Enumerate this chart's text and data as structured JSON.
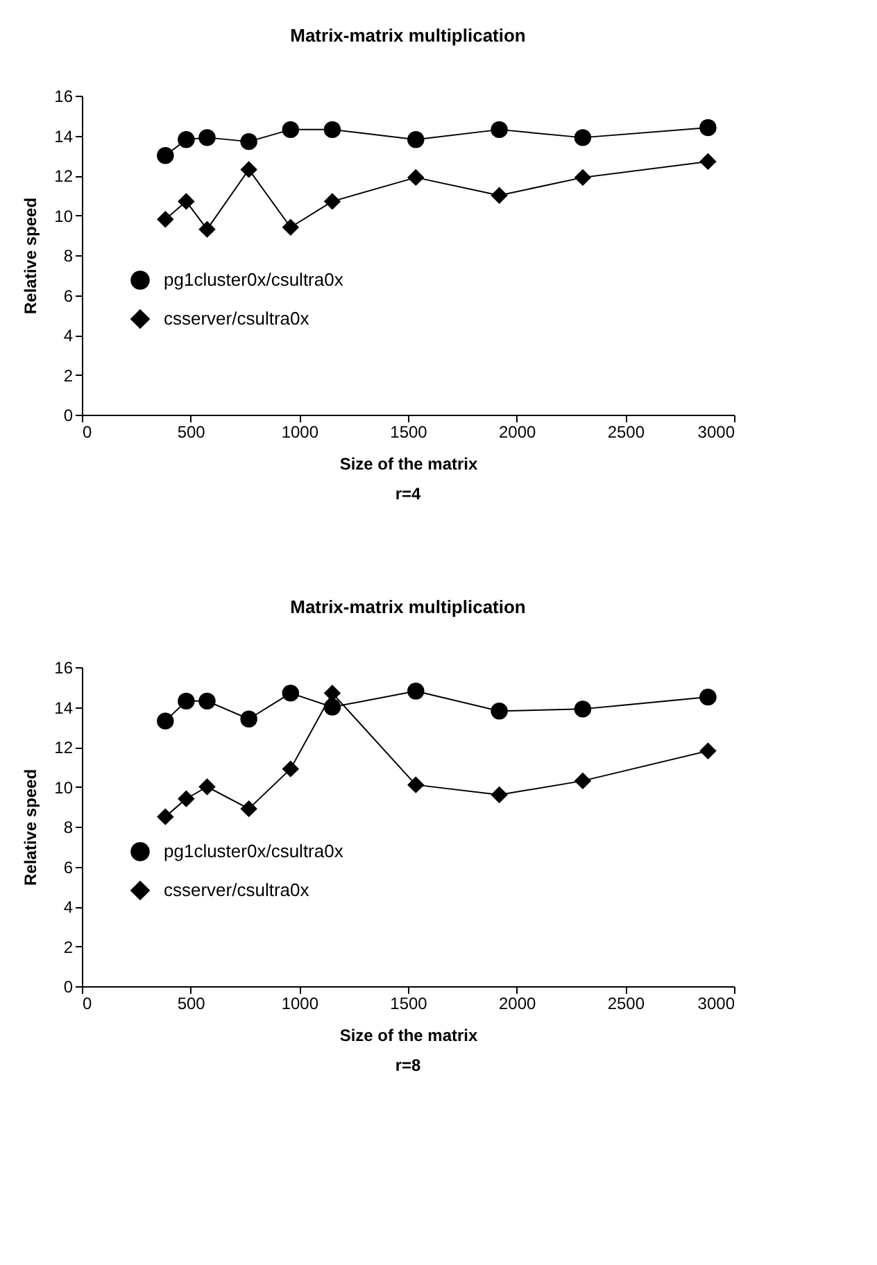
{
  "chart_data": [
    {
      "type": "line",
      "title": "Matrix-matrix multiplication",
      "xlabel": "Size of the matrix",
      "ylabel": "Relative speed",
      "annotations": [
        "r=4"
      ],
      "x": [
        384,
        480,
        576,
        768,
        960,
        1152,
        1536,
        1920,
        2304,
        2880
      ],
      "xlim": [
        0,
        3000
      ],
      "xticks": [
        0,
        500,
        1000,
        1500,
        2000,
        2500,
        3000
      ],
      "ylim": [
        0,
        16
      ],
      "yticks": [
        0,
        2,
        4,
        6,
        8,
        10,
        12,
        14,
        16
      ],
      "grid": false,
      "legend": "left",
      "series": [
        {
          "name": "pg1cluster0x/csultra0x",
          "color": "#000000",
          "marker": "circle",
          "values": [
            13.0,
            13.8,
            13.9,
            13.7,
            14.3,
            14.3,
            13.8,
            14.3,
            13.9,
            14.4
          ]
        },
        {
          "name": "csserver/csultra0x",
          "color": "#000000",
          "marker": "diamond",
          "values": [
            9.8,
            10.7,
            9.3,
            12.3,
            9.4,
            10.7,
            11.9,
            11.0,
            11.9,
            12.7
          ]
        }
      ]
    },
    {
      "type": "line",
      "title": "Matrix-matrix multiplication",
      "xlabel": "Size of the matrix",
      "ylabel": "Relative speed",
      "annotations": [
        "r=8"
      ],
      "x": [
        384,
        480,
        576,
        768,
        960,
        1152,
        1536,
        1920,
        2304,
        2880
      ],
      "xlim": [
        0,
        3000
      ],
      "xticks": [
        0,
        500,
        1000,
        1500,
        2000,
        2500,
        3000
      ],
      "ylim": [
        0,
        16
      ],
      "yticks": [
        0,
        2,
        4,
        6,
        8,
        10,
        12,
        14,
        16
      ],
      "grid": false,
      "legend": "left",
      "series": [
        {
          "name": "pg1cluster0x/csultra0x",
          "color": "#000000",
          "marker": "circle",
          "values": [
            13.3,
            14.3,
            14.3,
            13.4,
            14.7,
            14.0,
            14.8,
            13.8,
            13.9,
            14.5
          ]
        },
        {
          "name": "csserver/csultra0x",
          "color": "#000000",
          "marker": "diamond",
          "values": [
            8.5,
            9.4,
            10.0,
            8.9,
            10.9,
            14.7,
            10.1,
            9.6,
            10.3,
            11.8
          ]
        }
      ]
    }
  ]
}
